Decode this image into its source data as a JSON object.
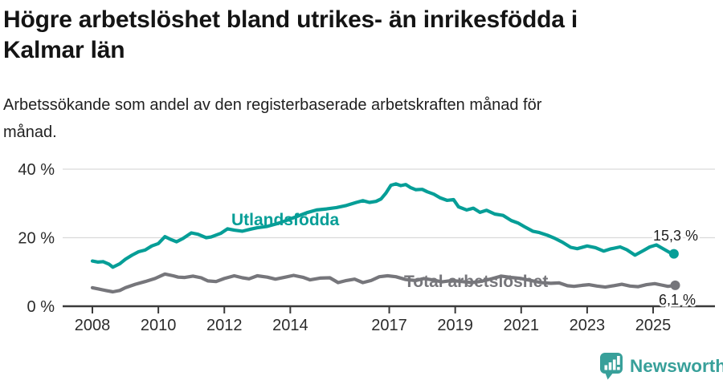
{
  "header": {
    "title": "Högre arbetslöshet bland utrikes- än inrikesfödda i Kalmar län",
    "title_lines": [
      "Högre arbetslöshet bland utrikes- än inrikesfödda i",
      "Kalmar län"
    ],
    "subtitle": "Arbetssökande som andel av den registerbaserade arbetskraften månad för månad.",
    "subtitle_lines": [
      "Arbetssökande som andel av den registerbaserade arbetskraften månad för",
      "månad."
    ]
  },
  "chart_data": {
    "type": "line",
    "title": "Högre arbetslöshet bland utrikes- än inrikesfödda i Kalmar län",
    "xlabel": "",
    "ylabel": "",
    "unit": "%",
    "xlim": [
      2007.1,
      2026.9
    ],
    "ylim": [
      0,
      44
    ],
    "grid": "horizontal",
    "legend_position": "inline-labels",
    "yticks": [
      {
        "value": 0,
        "label": "0 %"
      },
      {
        "value": 20,
        "label": "20 %"
      },
      {
        "value": 40,
        "label": "40 %"
      }
    ],
    "xticks": [
      {
        "value": 2008,
        "label": "2008"
      },
      {
        "value": 2010,
        "label": "2010"
      },
      {
        "value": 2012,
        "label": "2012"
      },
      {
        "value": 2014,
        "label": "2014"
      },
      {
        "value": 2017,
        "label": "2017"
      },
      {
        "value": 2019,
        "label": "2019"
      },
      {
        "value": 2021,
        "label": "2021"
      },
      {
        "value": 2023,
        "label": "2023"
      },
      {
        "value": 2025,
        "label": "2025"
      }
    ],
    "series": [
      {
        "name": "Utlandsfödda",
        "color": "#069e97",
        "end_value_label": "15,3 %",
        "points": [
          [
            2008.0,
            13.2
          ],
          [
            2008.17,
            12.9
          ],
          [
            2008.33,
            13.0
          ],
          [
            2008.5,
            12.3
          ],
          [
            2008.62,
            11.4
          ],
          [
            2008.83,
            12.4
          ],
          [
            2009.0,
            13.7
          ],
          [
            2009.2,
            14.9
          ],
          [
            2009.4,
            15.9
          ],
          [
            2009.6,
            16.4
          ],
          [
            2009.8,
            17.6
          ],
          [
            2010.0,
            18.3
          ],
          [
            2010.2,
            20.3
          ],
          [
            2010.4,
            19.4
          ],
          [
            2010.55,
            18.8
          ],
          [
            2010.75,
            19.8
          ],
          [
            2011.0,
            21.4
          ],
          [
            2011.2,
            21.0
          ],
          [
            2011.45,
            20.0
          ],
          [
            2011.6,
            20.2
          ],
          [
            2011.9,
            21.3
          ],
          [
            2012.1,
            22.6
          ],
          [
            2012.3,
            22.2
          ],
          [
            2012.55,
            21.9
          ],
          [
            2012.8,
            22.5
          ],
          [
            2013.0,
            22.9
          ],
          [
            2013.3,
            23.3
          ],
          [
            2013.6,
            24.1
          ],
          [
            2013.9,
            25.1
          ],
          [
            2014.2,
            26.2
          ],
          [
            2014.5,
            27.3
          ],
          [
            2014.8,
            28.1
          ],
          [
            2015.1,
            28.4
          ],
          [
            2015.4,
            28.8
          ],
          [
            2015.7,
            29.4
          ],
          [
            2016.0,
            30.3
          ],
          [
            2016.2,
            30.8
          ],
          [
            2016.4,
            30.3
          ],
          [
            2016.6,
            30.6
          ],
          [
            2016.75,
            31.3
          ],
          [
            2016.9,
            33.0
          ],
          [
            2017.05,
            35.3
          ],
          [
            2017.2,
            35.7
          ],
          [
            2017.35,
            35.2
          ],
          [
            2017.5,
            35.5
          ],
          [
            2017.65,
            34.6
          ],
          [
            2017.8,
            34.0
          ],
          [
            2018.0,
            34.1
          ],
          [
            2018.15,
            33.4
          ],
          [
            2018.35,
            32.7
          ],
          [
            2018.55,
            31.6
          ],
          [
            2018.75,
            30.9
          ],
          [
            2018.95,
            31.1
          ],
          [
            2019.1,
            29.0
          ],
          [
            2019.35,
            28.1
          ],
          [
            2019.55,
            28.6
          ],
          [
            2019.75,
            27.4
          ],
          [
            2019.95,
            28.0
          ],
          [
            2020.2,
            26.9
          ],
          [
            2020.45,
            26.5
          ],
          [
            2020.7,
            25.0
          ],
          [
            2020.9,
            24.3
          ],
          [
            2021.1,
            23.2
          ],
          [
            2021.35,
            21.9
          ],
          [
            2021.55,
            21.5
          ],
          [
            2021.8,
            20.7
          ],
          [
            2022.0,
            19.9
          ],
          [
            2022.25,
            18.7
          ],
          [
            2022.5,
            17.2
          ],
          [
            2022.7,
            16.8
          ],
          [
            2023.0,
            17.6
          ],
          [
            2023.25,
            17.1
          ],
          [
            2023.5,
            16.1
          ],
          [
            2023.7,
            16.7
          ],
          [
            2024.0,
            17.3
          ],
          [
            2024.2,
            16.5
          ],
          [
            2024.45,
            14.9
          ],
          [
            2024.7,
            16.2
          ],
          [
            2024.9,
            17.3
          ],
          [
            2025.1,
            17.9
          ],
          [
            2025.3,
            16.8
          ],
          [
            2025.5,
            15.7
          ],
          [
            2025.63,
            15.3
          ]
        ]
      },
      {
        "name": "Total arbetslöshet",
        "color": "#76767b",
        "end_value_label": "6,1 %",
        "points": [
          [
            2008.0,
            5.4
          ],
          [
            2008.2,
            5.0
          ],
          [
            2008.4,
            4.6
          ],
          [
            2008.62,
            4.2
          ],
          [
            2008.83,
            4.6
          ],
          [
            2009.0,
            5.4
          ],
          [
            2009.3,
            6.4
          ],
          [
            2009.6,
            7.2
          ],
          [
            2009.9,
            8.1
          ],
          [
            2010.2,
            9.4
          ],
          [
            2010.45,
            8.9
          ],
          [
            2010.6,
            8.5
          ],
          [
            2010.8,
            8.4
          ],
          [
            2011.05,
            8.8
          ],
          [
            2011.3,
            8.3
          ],
          [
            2011.5,
            7.4
          ],
          [
            2011.75,
            7.2
          ],
          [
            2012.0,
            8.1
          ],
          [
            2012.3,
            8.9
          ],
          [
            2012.55,
            8.3
          ],
          [
            2012.75,
            8.0
          ],
          [
            2013.0,
            8.9
          ],
          [
            2013.3,
            8.5
          ],
          [
            2013.55,
            7.9
          ],
          [
            2013.85,
            8.5
          ],
          [
            2014.1,
            9.0
          ],
          [
            2014.4,
            8.4
          ],
          [
            2014.6,
            7.7
          ],
          [
            2014.9,
            8.2
          ],
          [
            2015.2,
            8.3
          ],
          [
            2015.45,
            6.9
          ],
          [
            2015.7,
            7.5
          ],
          [
            2015.95,
            7.9
          ],
          [
            2016.2,
            6.9
          ],
          [
            2016.45,
            7.5
          ],
          [
            2016.7,
            8.6
          ],
          [
            2016.95,
            8.9
          ],
          [
            2017.2,
            8.6
          ],
          [
            2017.5,
            7.8
          ],
          [
            2017.8,
            7.5
          ],
          [
            2018.05,
            8.1
          ],
          [
            2018.3,
            7.7
          ],
          [
            2018.6,
            7.1
          ],
          [
            2018.9,
            7.5
          ],
          [
            2019.2,
            7.2
          ],
          [
            2019.5,
            6.9
          ],
          [
            2019.8,
            7.3
          ],
          [
            2020.1,
            8.0
          ],
          [
            2020.4,
            8.8
          ],
          [
            2020.7,
            8.4
          ],
          [
            2021.0,
            8.1
          ],
          [
            2021.3,
            7.5
          ],
          [
            2021.6,
            6.9
          ],
          [
            2021.9,
            6.7
          ],
          [
            2022.15,
            6.8
          ],
          [
            2022.4,
            6.0
          ],
          [
            2022.6,
            5.8
          ],
          [
            2022.85,
            6.1
          ],
          [
            2023.05,
            6.3
          ],
          [
            2023.3,
            5.9
          ],
          [
            2023.55,
            5.6
          ],
          [
            2023.8,
            6.0
          ],
          [
            2024.05,
            6.4
          ],
          [
            2024.3,
            5.9
          ],
          [
            2024.55,
            5.7
          ],
          [
            2024.8,
            6.3
          ],
          [
            2025.05,
            6.6
          ],
          [
            2025.25,
            6.2
          ],
          [
            2025.45,
            5.8
          ],
          [
            2025.67,
            6.1
          ]
        ]
      }
    ]
  },
  "colors": {
    "accent_teal": "#069e97",
    "series_gray": "#76767b",
    "gridline": "#d9d9d9",
    "axis": "#3a3a3a",
    "tick_text": "#2b2b2b",
    "value_text": "#1e1e1e",
    "brand_teal": "#38a09a"
  },
  "footer": {
    "brand": "Newsworthy",
    "logo_icon": "bar-chart-speech-bubble-icon"
  }
}
